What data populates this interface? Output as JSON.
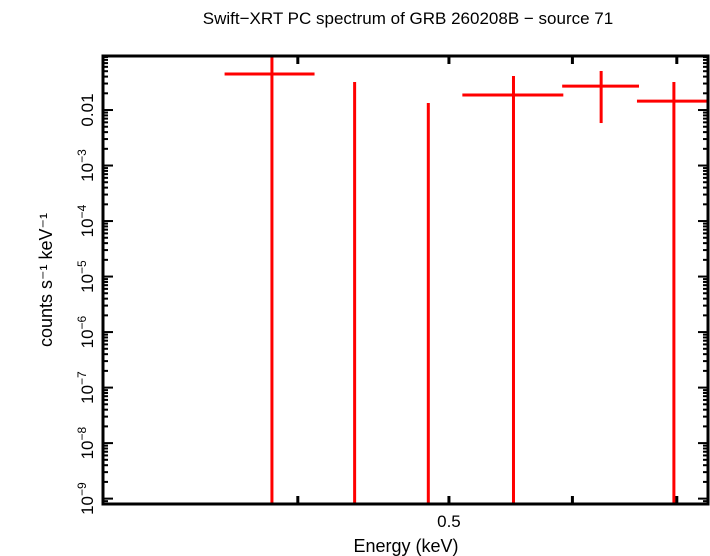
{
  "chart_data": {
    "type": "scatter",
    "title": "Swift−XRT PC spectrum of GRB 260208B − source 71",
    "xlabel": "Energy (keV)",
    "ylabel": "counts s⁻¹ keV⁻¹",
    "x_scale": "log",
    "y_scale": "log",
    "xlim": [
      0.3,
      0.733
    ],
    "ylim": [
      8e-10,
      0.094
    ],
    "x_major_ticks": [
      0.4,
      0.5,
      0.6,
      0.7
    ],
    "x_tick_labels": [
      {
        "value": 0.5,
        "label": "0.5"
      }
    ],
    "y_tick_labels": [
      {
        "value": 1e-09,
        "base": "10",
        "exp": "−9"
      },
      {
        "value": 1e-08,
        "base": "10",
        "exp": "−8"
      },
      {
        "value": 1e-07,
        "base": "10",
        "exp": "−7"
      },
      {
        "value": 1e-06,
        "base": "10",
        "exp": "−6"
      },
      {
        "value": 1e-05,
        "base": "10",
        "exp": "−5"
      },
      {
        "value": 0.0001,
        "base": "10",
        "exp": "−4"
      },
      {
        "value": 0.001,
        "base": "10",
        "exp": "−3"
      },
      {
        "value": 0.01,
        "base": "0.01",
        "exp": ""
      }
    ],
    "grid": false,
    "color": "#ff0000",
    "points": [
      {
        "x": 0.385,
        "xlow": 0.359,
        "xhigh": 0.41,
        "y": 0.0446,
        "ylow": 0,
        "yhigh": 0.2
      },
      {
        "x": 0.435,
        "xlow": 0.435,
        "xhigh": 0.435,
        "y": 0,
        "ylow": 0,
        "yhigh": 0.032
      },
      {
        "x": 0.485,
        "xlow": 0.485,
        "xhigh": 0.485,
        "y": 0,
        "ylow": 0,
        "yhigh": 0.0134
      },
      {
        "x": 0.55,
        "xlow": 0.51,
        "xhigh": 0.592,
        "y": 0.0186,
        "ylow": 0,
        "yhigh": 0.041
      },
      {
        "x": 0.626,
        "xlow": 0.591,
        "xhigh": 0.662,
        "y": 0.027,
        "ylow": 0.00583,
        "yhigh": 0.0505
      },
      {
        "x": 0.697,
        "xlow": 0.66,
        "xhigh": 0.76,
        "y": 0.0145,
        "ylow": 0,
        "yhigh": 0.032
      }
    ]
  }
}
